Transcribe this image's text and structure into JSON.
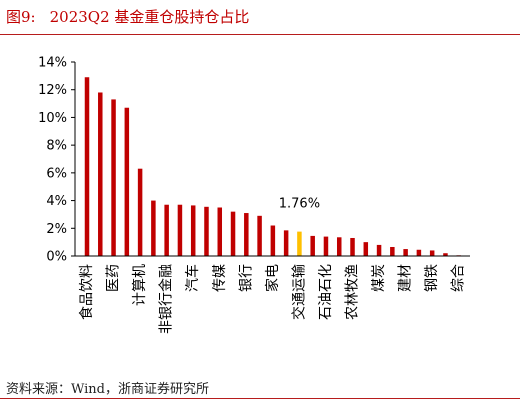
{
  "figure_label": "图9:",
  "title": "2023Q2 基金重仓股持仓占比",
  "source": "资料来源：Wind，浙商证券研究所",
  "colors": {
    "bar": "#c00000",
    "highlight": "#ffc000",
    "title": "#c00000"
  },
  "chart_data": {
    "type": "bar",
    "title": "2023Q2 基金重仓股持仓占比",
    "xlabel": "",
    "ylabel": "",
    "ylim": [
      0,
      14
    ],
    "yticks": [
      "0%",
      "2%",
      "4%",
      "6%",
      "8%",
      "10%",
      "12%",
      "14%"
    ],
    "grid": false,
    "legend": "none",
    "categories": [
      "食品饮料",
      "",
      "医药",
      "",
      "计算机",
      "",
      "非银行金融",
      "",
      "汽车",
      "",
      "传媒",
      "",
      "银行",
      "",
      "家电",
      "",
      "交通运输",
      "",
      "石油石化",
      "",
      "农林牧渔",
      "",
      "煤炭",
      "",
      "建材",
      "",
      "钢铁",
      "",
      "综合"
    ],
    "values": [
      12.9,
      11.8,
      11.3,
      10.7,
      6.3,
      4.0,
      3.7,
      3.7,
      3.65,
      3.55,
      3.5,
      3.2,
      3.1,
      2.9,
      2.2,
      1.85,
      1.76,
      1.45,
      1.4,
      1.35,
      1.3,
      1.0,
      0.8,
      0.65,
      0.5,
      0.45,
      0.4,
      0.2,
      0.05
    ],
    "highlight_index": 16,
    "annotation": "1.76%"
  }
}
